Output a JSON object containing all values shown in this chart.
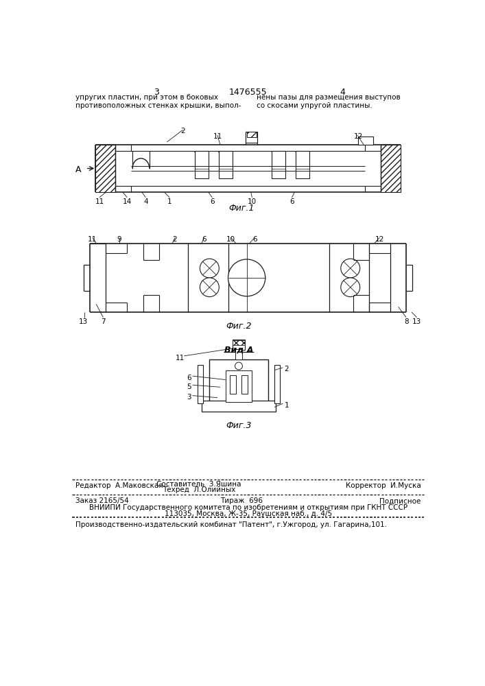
{
  "page_color": "#ffffff",
  "header_left_num": "3",
  "header_center_num": "1476555",
  "header_right_num": "4",
  "header_text_left": "упругих пластин, при этом в боковых\nпротивоположных стенках крышки, выпол-",
  "header_text_right": "нены пазы для размещения выступов\nсо скосами упругой пластины.",
  "fig1_caption": "Фиг.1",
  "fig2_caption": "Фиг.2",
  "fig3_caption": "Фиг.3",
  "fig3_title": "Вид А",
  "footer_line1_col1": "Редактор  А.Маковская",
  "footer_line1_col2_top": "Составитель  З.Яшина",
  "footer_line1_col2_bot": "Техред  Л.Олийных",
  "footer_line1_col3": "Корректор  И.Муска",
  "footer_line2_col1": "Заказ 2165/54",
  "footer_line2_col2": "Тираж  696",
  "footer_line2_col3": "Подписное",
  "footer_line3a": "ВНИИПИ Государственного комитета по изобретениям и открытиям при ГКНТ СССР",
  "footer_line3b": "113035, Москва, Ж-35, Раушская наб., д. 4/5",
  "footer_line4": "Производственно-издательский комбинат \"Патент\", г.Ужгород, ул. Гагарина,101.",
  "lc": "#1a1a1a",
  "tc": "#000000"
}
